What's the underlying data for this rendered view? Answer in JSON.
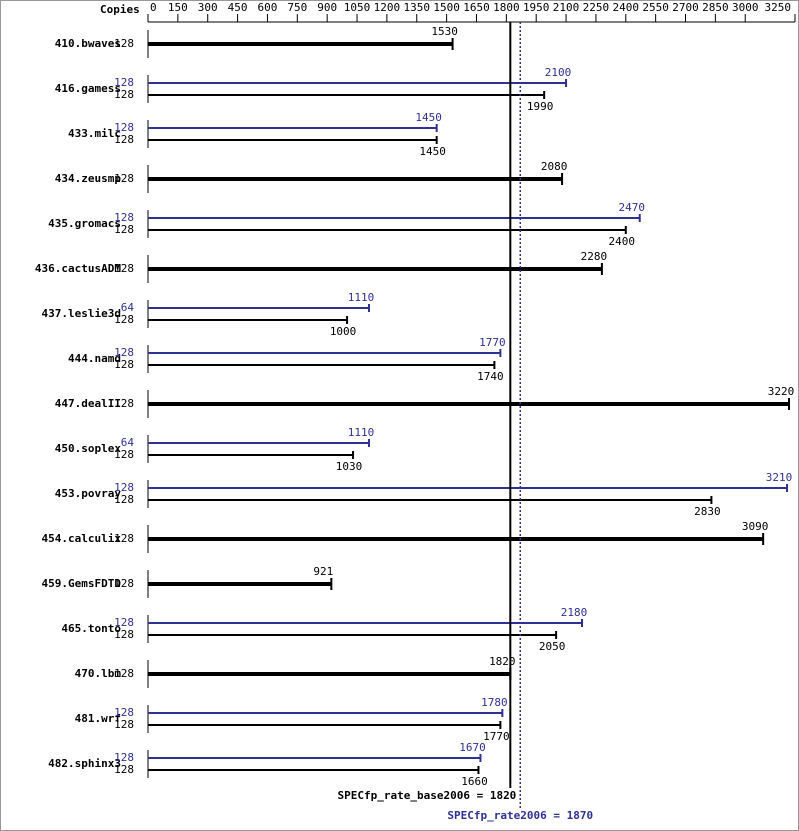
{
  "chart_data": {
    "type": "bar",
    "orientation": "horizontal",
    "copies_header": "Copies",
    "categories": [
      "410.bwaves",
      "416.gamess",
      "433.milc",
      "434.zeusmp",
      "435.gromacs",
      "436.cactusADM",
      "437.leslie3d",
      "444.namd",
      "447.dealII",
      "450.soplex",
      "453.povray",
      "454.calculix",
      "459.GemsFDTD",
      "465.tonto",
      "470.lbm",
      "481.wrf",
      "482.sphinx3"
    ],
    "series": [
      {
        "color": "#000000",
        "copies": [
          128,
          128,
          128,
          128,
          128,
          128,
          128,
          128,
          128,
          128,
          128,
          128,
          128,
          128,
          128,
          128,
          128
        ],
        "values": [
          1530,
          1990,
          1450,
          2080,
          2400,
          2280,
          1000,
          1740,
          3220,
          1030,
          2830,
          3090,
          921,
          2050,
          1820,
          1770,
          1660
        ]
      },
      {
        "color": "#2e3192",
        "copies": [
          null,
          128,
          128,
          null,
          128,
          null,
          64,
          128,
          null,
          64,
          128,
          null,
          null,
          128,
          null,
          128,
          128
        ],
        "values": [
          null,
          2100,
          1450,
          null,
          2470,
          null,
          1110,
          1770,
          null,
          1110,
          3210,
          null,
          null,
          2180,
          null,
          1780,
          1670
        ]
      }
    ],
    "xlim": [
      0,
      3250
    ],
    "xticks": [
      0,
      150,
      300,
      450,
      600,
      750,
      900,
      1050,
      1200,
      1350,
      1500,
      1650,
      1800,
      1950,
      2100,
      2250,
      2400,
      2550,
      2700,
      2850,
      3000,
      3250
    ],
    "reference_lines": [
      {
        "value": 1820,
        "label": "SPECfp_rate_base2006 = 1820",
        "color": "#000000",
        "style": "solid"
      },
      {
        "value": 1870,
        "label": "SPECfp_rate2006 = 1870",
        "color": "#2e3192",
        "style": "dotted"
      }
    ]
  }
}
